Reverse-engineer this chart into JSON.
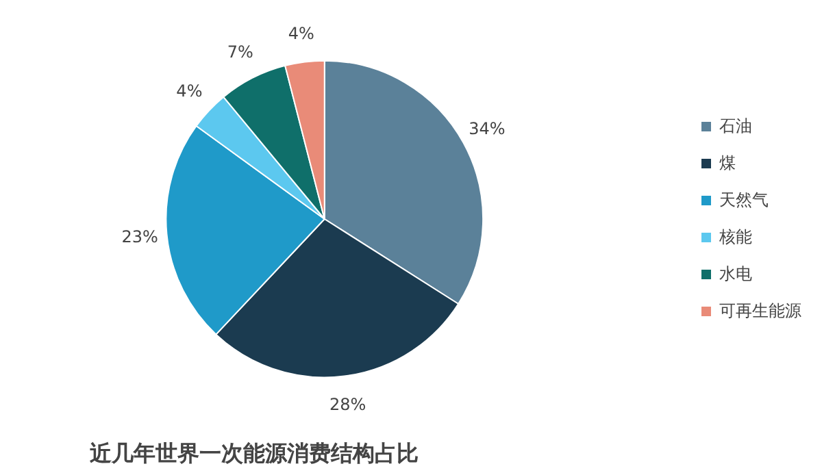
{
  "chart_data": {
    "type": "pie",
    "title": "近几年世界一次能源消费结构占比",
    "categories": [
      "石油",
      "煤",
      "天然气",
      "核能",
      "水电",
      "可再生能源"
    ],
    "values": [
      34,
      28,
      23,
      4,
      7,
      4
    ],
    "value_labels": [
      "34%",
      "28%",
      "23%",
      "4%",
      "7%",
      "4%"
    ],
    "colors": [
      "#5b8199",
      "#1b3b50",
      "#1f9ac9",
      "#5cc8ef",
      "#0f6f6a",
      "#e98b78"
    ],
    "legend": "right"
  }
}
